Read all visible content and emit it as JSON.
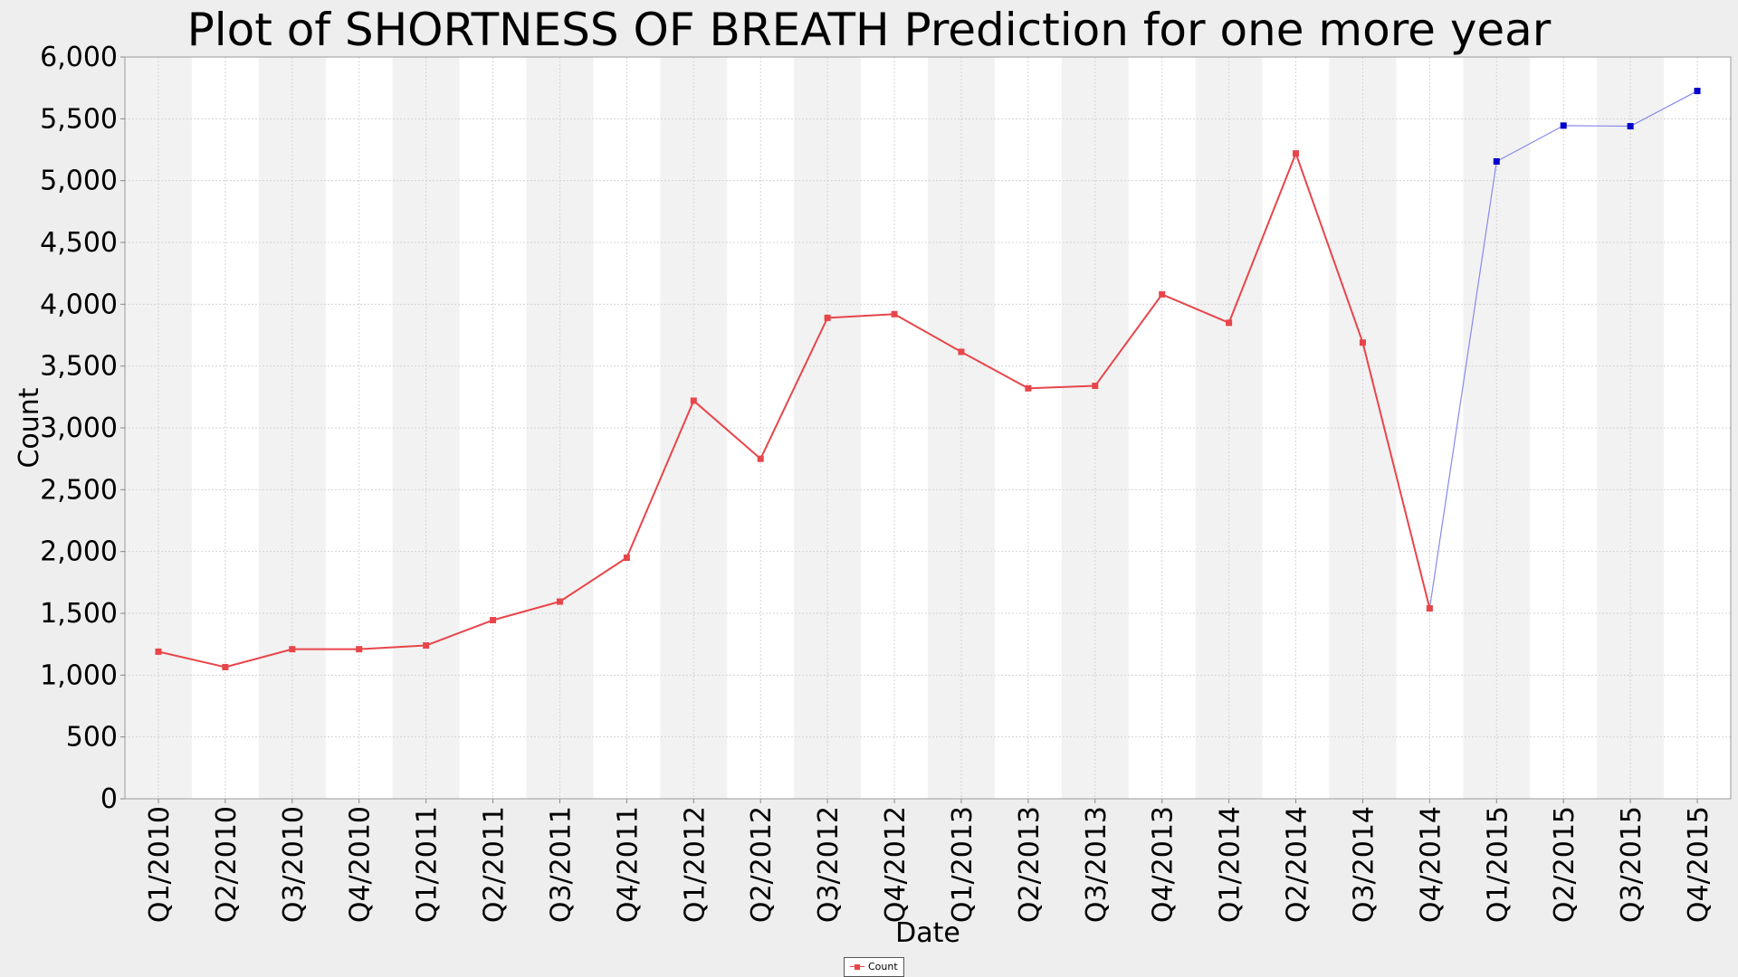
{
  "chart_data": {
    "type": "line",
    "title": "Plot of SHORTNESS OF BREATH Prediction for one more year",
    "xlabel": "Date",
    "ylabel": "Count",
    "ylim": [
      0,
      6000
    ],
    "y_ticks": [
      "0",
      "500",
      "1,000",
      "1,500",
      "2,000",
      "2,500",
      "3,000",
      "3,500",
      "4,000",
      "4,500",
      "5,000",
      "5,500",
      "6,000"
    ],
    "categories": [
      "Q1/2010",
      "Q2/2010",
      "Q3/2010",
      "Q4/2010",
      "Q1/2011",
      "Q2/2011",
      "Q3/2011",
      "Q4/2011",
      "Q1/2012",
      "Q2/2012",
      "Q3/2012",
      "Q4/2012",
      "Q1/2013",
      "Q2/2013",
      "Q3/2013",
      "Q4/2013",
      "Q1/2014",
      "Q2/2014",
      "Q3/2014",
      "Q4/2014",
      "Q1/2015",
      "Q2/2015",
      "Q3/2015",
      "Q4/2015"
    ],
    "grid": true,
    "legend": "bottom-center",
    "series": [
      {
        "name": "Count",
        "color": "#e8454a",
        "values": [
          1190,
          1065,
          1210,
          1210,
          1240,
          1445,
          1595,
          1950,
          3220,
          2750,
          3890,
          3920,
          3615,
          3320,
          3340,
          4080,
          3850,
          5220,
          3690,
          1540,
          null,
          null,
          null,
          null
        ]
      },
      {
        "color": "#0000cc",
        "line_color": "#8888ee",
        "values": [
          null,
          null,
          null,
          null,
          null,
          null,
          null,
          null,
          null,
          null,
          null,
          null,
          null,
          null,
          null,
          null,
          null,
          null,
          null,
          1540,
          5155,
          5445,
          5440,
          5725
        ]
      }
    ]
  }
}
